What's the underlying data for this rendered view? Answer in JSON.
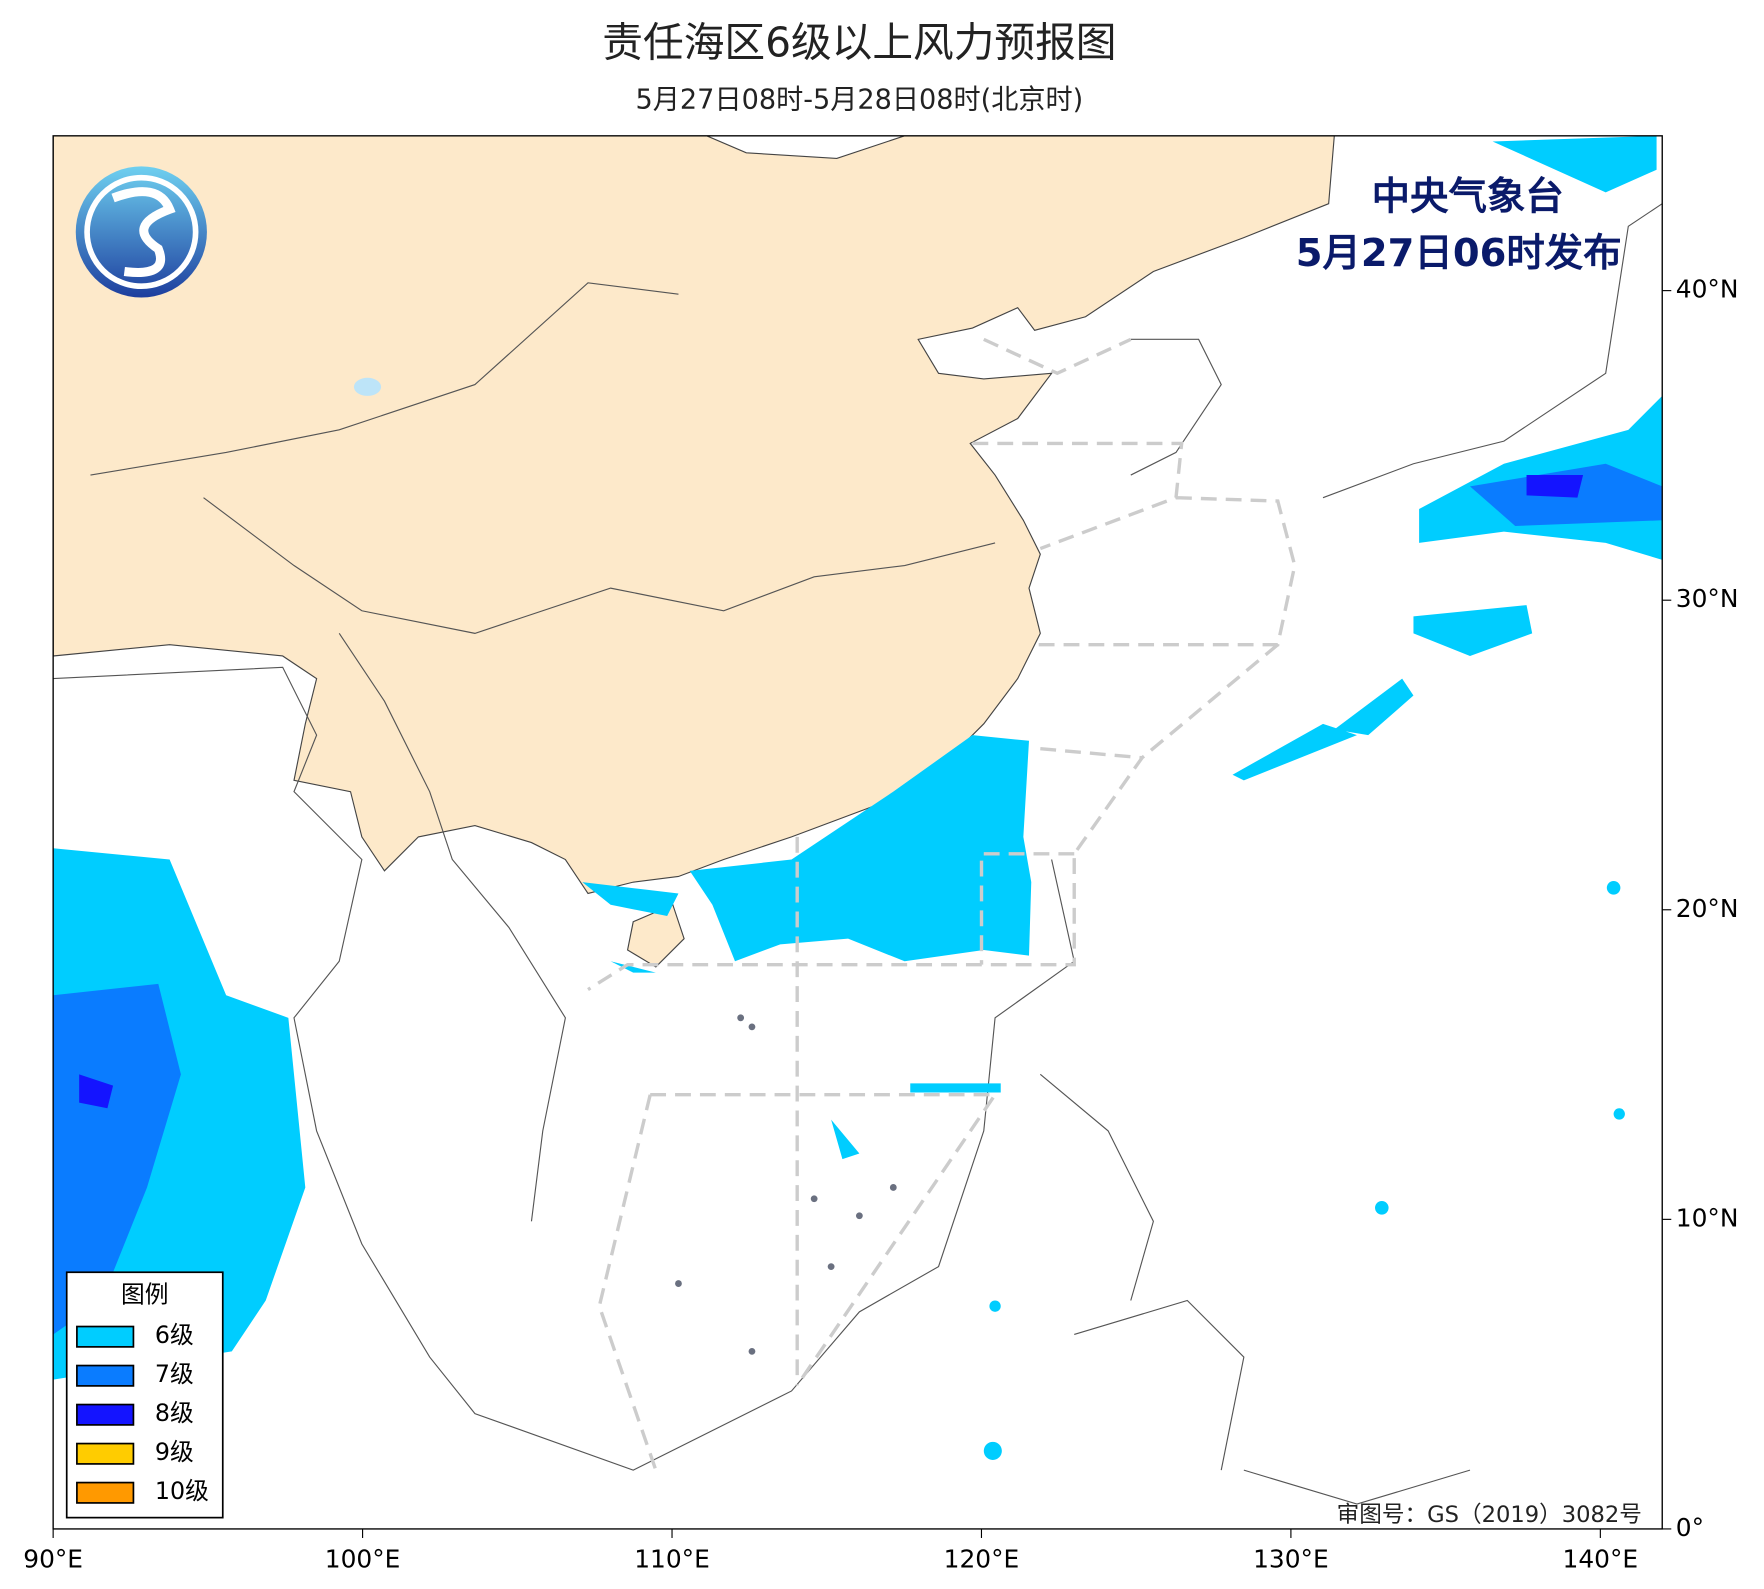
{
  "map": {
    "title": "责任海区6级以上风力预报图",
    "subtitle": "5月27日08时-5月28日08时(北京时)",
    "issuer": "中央气象台",
    "issued": "5月27日06时发布",
    "xlim": [
      90,
      142
    ],
    "ylim": [
      0,
      45
    ],
    "xticks": [
      {
        "value": 90,
        "label": "90°E"
      },
      {
        "value": 100,
        "label": "100°E"
      },
      {
        "value": 110,
        "label": "110°E"
      },
      {
        "value": 120,
        "label": "120°E"
      },
      {
        "value": 130,
        "label": "130°E"
      },
      {
        "value": 140,
        "label": "140°E"
      }
    ],
    "yticks": [
      {
        "value": 0,
        "label": "0°"
      },
      {
        "value": 10,
        "label": "10°N"
      },
      {
        "value": 20,
        "label": "20°N"
      },
      {
        "value": 30,
        "label": "30°N"
      },
      {
        "value": 40,
        "label": "40°N"
      }
    ],
    "legend": {
      "title": "图例",
      "items": [
        {
          "label": "6级",
          "color": "#00cdff"
        },
        {
          "label": "7级",
          "color": "#0a7cff"
        },
        {
          "label": "8级",
          "color": "#1414ff"
        },
        {
          "label": "9级",
          "color": "#ffcc00"
        },
        {
          "label": "10级",
          "color": "#ff9900"
        }
      ]
    },
    "approval": "审图号：GS（2019）3082号"
  }
}
